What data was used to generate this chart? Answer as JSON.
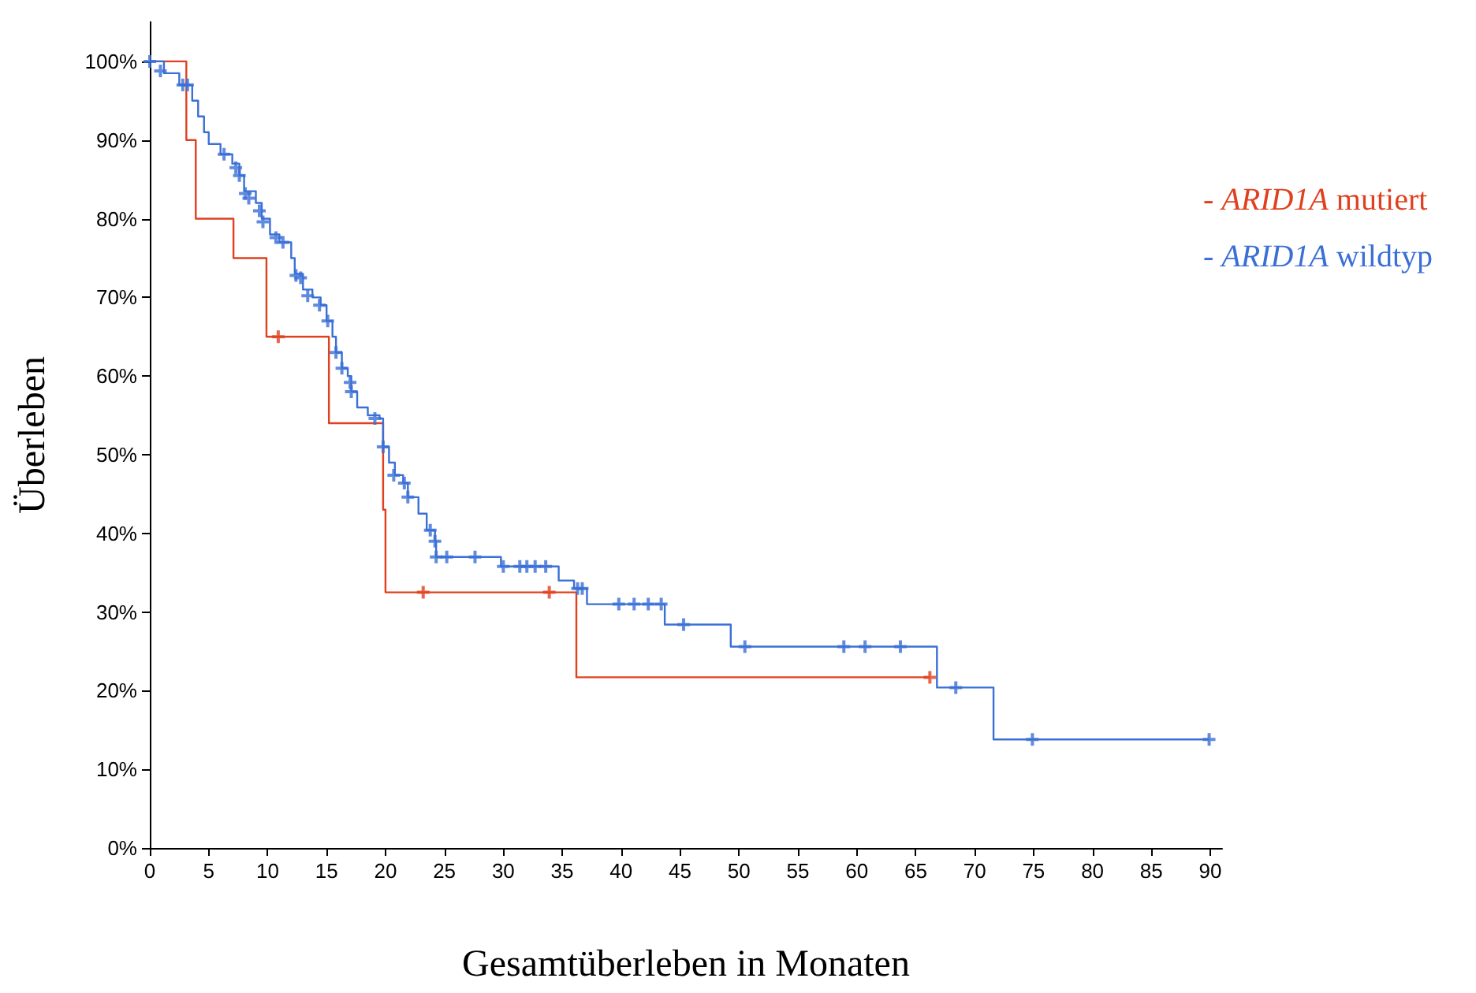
{
  "chart_data": {
    "type": "step",
    "xlabel": "Gesamtüberleben in Monaten",
    "ylabel": "Überleben",
    "xlim": [
      0,
      91
    ],
    "xticks": [
      0,
      5,
      10,
      15,
      20,
      25,
      30,
      35,
      40,
      45,
      50,
      55,
      60,
      65,
      70,
      75,
      80,
      85,
      90
    ],
    "ylim": [
      0,
      105
    ],
    "yticks": [
      {
        "value": 0,
        "label": "0%"
      },
      {
        "value": 10,
        "label": "10%"
      },
      {
        "value": 20,
        "label": "20%"
      },
      {
        "value": 30,
        "label": "30%"
      },
      {
        "value": 40,
        "label": "40%"
      },
      {
        "value": 50,
        "label": "50%"
      },
      {
        "value": 60,
        "label": "60%"
      },
      {
        "value": 70,
        "label": "70%"
      },
      {
        "value": 80,
        "label": "80%"
      },
      {
        "value": 90,
        "label": "90%"
      },
      {
        "value": 100,
        "label": "100%"
      }
    ],
    "grid": false,
    "legend": "right",
    "line_style": "solid",
    "series": [
      {
        "name": "- ARID1A mutiert",
        "color": "#e0401f",
        "x": [
          0,
          3.1,
          3.9,
          7.1,
          9.9,
          15.2,
          19.8,
          20.0,
          36.2,
          66.2
        ],
        "values": [
          100,
          90,
          80,
          75,
          65,
          54,
          43,
          32.5,
          21.7,
          21.7
        ]
      },
      {
        "name": "- ARID1A wildtyp",
        "color": "#3a6fd6",
        "x": [
          0,
          1.2,
          2.5,
          3.6,
          4.1,
          4.6,
          5,
          6,
          7,
          7.6,
          8,
          9,
          9.5,
          10.2,
          11,
          12,
          12.3,
          13,
          13.8,
          14.5,
          15,
          15.5,
          15.8,
          16.3,
          16.8,
          17.1,
          17.6,
          18.5,
          19.5,
          19.8,
          20.3,
          20.8,
          21.5,
          21.9,
          22.8,
          23.5,
          24.2,
          24.3,
          29.8,
          34.7,
          36,
          37.1,
          43.7,
          49.3,
          66.8,
          71.6,
          89.9
        ],
        "values": [
          100,
          98.5,
          97,
          95,
          93,
          91,
          89.5,
          88.2,
          87,
          85.5,
          83.5,
          82,
          80,
          78,
          77,
          75,
          73,
          71,
          70,
          69,
          67,
          65,
          63,
          61,
          60,
          58,
          56,
          55,
          54.6,
          51,
          49,
          47.4,
          46.4,
          44.6,
          42.5,
          40.4,
          39,
          37,
          35.8,
          34,
          33,
          31,
          28.4,
          25.6,
          20.4,
          13.8,
          13.8
        ]
      },
      {
        "color": "#e0401f",
        "type": "scatter",
        "marker": "cross",
        "x": [
          10.9,
          23.2,
          33.9,
          66.2
        ],
        "values": [
          65,
          32.5,
          32.5,
          21.7
        ]
      },
      {
        "color": "#3a6fd6",
        "type": "scatter",
        "marker": "cross",
        "x": [
          0,
          0.9,
          2.8,
          3.2,
          6.3,
          7.3,
          7.6,
          8.1,
          8.4,
          9.3,
          9.6,
          10.7,
          11.3,
          12.4,
          12.8,
          13.4,
          14.4,
          15.1,
          15.8,
          16.3,
          17,
          17.1,
          19.1,
          19.8,
          20.7,
          21.6,
          21.9,
          23.8,
          24.2,
          24.3,
          25.2,
          27.6,
          30,
          31.4,
          32,
          32.7,
          33.6,
          36.3,
          36.7,
          39.8,
          41.1,
          42.3,
          43.4,
          45.3,
          50.5,
          58.9,
          60.7,
          63.7,
          68.4,
          74.9,
          89.9
        ],
        "values": [
          100,
          98.8,
          97,
          97,
          88.2,
          86.5,
          85.5,
          83.2,
          82.6,
          81,
          79.6,
          77.6,
          77,
          72.8,
          72.5,
          70.2,
          69,
          67,
          63,
          61,
          59.2,
          58,
          54.6,
          51,
          47.4,
          46.4,
          44.6,
          40.4,
          39,
          37,
          37,
          37,
          35.8,
          35.8,
          35.8,
          35.8,
          35.8,
          33,
          33,
          31,
          31,
          31,
          31,
          28.4,
          25.6,
          25.6,
          25.6,
          25.6,
          20.4,
          13.8,
          13.8
        ]
      }
    ]
  }
}
